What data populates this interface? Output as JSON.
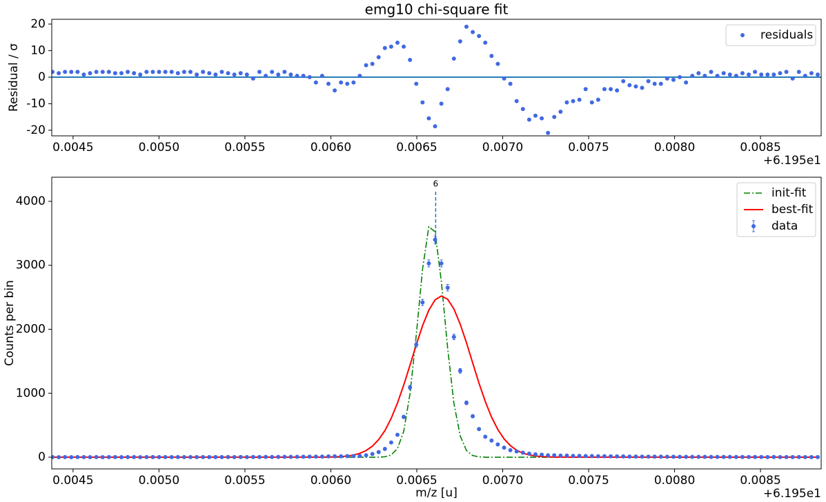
{
  "chart_data": [
    {
      "type": "scatter",
      "title": "emg10 chi-square fit",
      "ylabel": "Residual / σ",
      "x_offset_label": "+6.195e1",
      "xlim": [
        0.004376,
        0.008853
      ],
      "ylim": [
        -22.1,
        21.8
      ],
      "xticks": [
        0.0045,
        {
          "value": 0.005,
          "label": "0.0050"
        },
        0.0055,
        {
          "value": 0.006,
          "label": "0.0060"
        },
        0.0065,
        {
          "value": 0.007,
          "label": "0.0070"
        },
        0.0075,
        {
          "value": 0.008,
          "label": "0.0080"
        },
        0.0085
      ],
      "yticks": [
        -20,
        -10,
        0,
        10,
        20
      ],
      "hline": 0,
      "hline_color": "#1f77b4",
      "legend": "upper right",
      "x": [
        0.00438,
        0.0044165,
        0.004453,
        0.0044895,
        0.004526,
        0.0045625,
        0.004599,
        0.0046355,
        0.004672,
        0.0047085,
        0.004745,
        0.0047815,
        0.004818,
        0.0048545,
        0.004891,
        0.0049275,
        0.004964,
        0.0050005,
        0.005037,
        0.0050735,
        0.00511,
        0.0051465,
        0.005183,
        0.0052195,
        0.005256,
        0.0052925,
        0.005329,
        0.0053655,
        0.005402,
        0.0054385,
        0.005475,
        0.0055115,
        0.005548,
        0.0055845,
        0.005621,
        0.0056575,
        0.005694,
        0.0057305,
        0.005767,
        0.0058035,
        0.00584,
        0.0058765,
        0.005913,
        0.0059495,
        0.005986,
        0.0060225,
        0.006059,
        0.0060955,
        0.006132,
        0.0061685,
        0.006205,
        0.0062415,
        0.006278,
        0.0063145,
        0.006351,
        0.0063875,
        0.006424,
        0.0064605,
        0.006497,
        0.0065335,
        0.00657,
        0.0066065,
        0.006643,
        0.0066795,
        0.006716,
        0.0067525,
        0.006789,
        0.0068255,
        0.006862,
        0.0068985,
        0.006935,
        0.0069715,
        0.007008,
        0.0070445,
        0.007081,
        0.0071175,
        0.007154,
        0.0071905,
        0.007227,
        0.0072635,
        0.0073,
        0.0073365,
        0.007373,
        0.0074095,
        0.007446,
        0.0074825,
        0.007519,
        0.0075555,
        0.007592,
        0.0076285,
        0.007665,
        0.0077015,
        0.007738,
        0.0077745,
        0.007811,
        0.0078475,
        0.007884,
        0.0079205,
        0.007957,
        0.0079935,
        0.00803,
        0.0080665,
        0.008103,
        0.0081395,
        0.008176,
        0.0082125,
        0.008249,
        0.0082855,
        0.008322,
        0.0083585,
        0.008395,
        0.0084315,
        0.008468,
        0.0085045,
        0.008541,
        0.0085775,
        0.008614,
        0.0086505,
        0.008687,
        0.0087235,
        0.00876,
        0.0087965,
        0.008833
      ],
      "series": [
        {
          "name": "residuals",
          "kind": "scatter",
          "color": "#4169e1",
          "values": [
            2,
            1.5,
            2,
            2,
            2,
            1,
            1.5,
            2,
            2,
            2,
            1.5,
            1.5,
            2,
            1.5,
            1,
            2,
            2,
            2,
            2,
            2,
            1.5,
            2,
            2,
            1,
            2,
            1.5,
            1,
            2,
            1.5,
            1,
            1.5,
            1,
            -0.5,
            2,
            0.5,
            2,
            1,
            2,
            1,
            0.5,
            0.5,
            0,
            -2,
            0.5,
            -2.5,
            -5,
            -2,
            -2.5,
            -2,
            0.5,
            4.5,
            5,
            7.5,
            11,
            11.5,
            13,
            11.5,
            6.5,
            -2.5,
            -9.5,
            -15.5,
            -18.5,
            -10,
            -4.5,
            7,
            13.5,
            19,
            17,
            15.5,
            13,
            8,
            5,
            -0.5,
            -2.5,
            -9,
            -12,
            -16,
            -14.5,
            -15.5,
            -21,
            -15,
            -13,
            -9.5,
            -9,
            -8.5,
            -4.5,
            -9.5,
            -8.5,
            -4.5,
            -4.5,
            -5,
            -1.5,
            -3,
            -3.5,
            -4,
            -1.5,
            -2.5,
            -2.5,
            -0.5,
            -1,
            0,
            -2,
            0.5,
            1.5,
            0.5,
            2,
            0.5,
            1.5,
            1,
            0.5,
            1.5,
            1,
            2,
            1,
            1,
            1,
            1.5,
            2,
            -0.5,
            2,
            0.5,
            1.5,
            1
          ]
        }
      ]
    },
    {
      "type": "line",
      "xlabel": "m/z [u]",
      "ylabel": "Counts per bin",
      "x_offset_label": "+6.195e1",
      "xlim": [
        0.004376,
        0.008853
      ],
      "ylim": [
        -183,
        4377
      ],
      "xticks": [
        0.0045,
        {
          "value": 0.005,
          "label": "0.0050"
        },
        0.0055,
        {
          "value": 0.006,
          "label": "0.0060"
        },
        0.0065,
        {
          "value": 0.007,
          "label": "0.0070"
        },
        0.0075,
        {
          "value": 0.008,
          "label": "0.0080"
        },
        0.0085
      ],
      "yticks": [
        0,
        1000,
        2000,
        3000,
        4000
      ],
      "legend": "upper right",
      "annotations": [
        {
          "text": "6",
          "x": 0.00661,
          "y_start": 3320,
          "y_end": 4150,
          "color": "#1f77b4"
        }
      ],
      "x": [
        0.00438,
        0.0044165,
        0.004453,
        0.0044895,
        0.004526,
        0.0045625,
        0.004599,
        0.0046355,
        0.004672,
        0.0047085,
        0.004745,
        0.0047815,
        0.004818,
        0.0048545,
        0.004891,
        0.0049275,
        0.004964,
        0.0050005,
        0.005037,
        0.0050735,
        0.00511,
        0.0051465,
        0.005183,
        0.0052195,
        0.005256,
        0.0052925,
        0.005329,
        0.0053655,
        0.005402,
        0.0054385,
        0.005475,
        0.0055115,
        0.005548,
        0.0055845,
        0.005621,
        0.0056575,
        0.005694,
        0.0057305,
        0.005767,
        0.0058035,
        0.00584,
        0.0058765,
        0.005913,
        0.0059495,
        0.005986,
        0.0060225,
        0.006059,
        0.0060955,
        0.006132,
        0.0061685,
        0.006205,
        0.0062415,
        0.006278,
        0.0063145,
        0.006351,
        0.0063875,
        0.006424,
        0.0064605,
        0.006497,
        0.0065335,
        0.00657,
        0.0066065,
        0.006643,
        0.0066795,
        0.006716,
        0.0067525,
        0.006789,
        0.0068255,
        0.006862,
        0.0068985,
        0.006935,
        0.0069715,
        0.007008,
        0.0070445,
        0.007081,
        0.0071175,
        0.007154,
        0.0071905,
        0.007227,
        0.0072635,
        0.0073,
        0.0073365,
        0.007373,
        0.0074095,
        0.007446,
        0.0074825,
        0.007519,
        0.0075555,
        0.007592,
        0.0076285,
        0.007665,
        0.0077015,
        0.007738,
        0.0077745,
        0.007811,
        0.0078475,
        0.007884,
        0.0079205,
        0.007957,
        0.0079935,
        0.00803,
        0.0080665,
        0.008103,
        0.0081395,
        0.008176,
        0.0082125,
        0.008249,
        0.0082855,
        0.008322,
        0.0083585,
        0.008395,
        0.0084315,
        0.008468,
        0.0085045,
        0.008541,
        0.0085775,
        0.008614,
        0.0086505,
        0.008687,
        0.0087235,
        0.00876,
        0.0087965,
        0.008833
      ],
      "series": [
        {
          "name": "init-fit",
          "kind": "line",
          "linestyle": "dashdot",
          "color": "#008000",
          "values": [
            0,
            0,
            0,
            0,
            0,
            0,
            0,
            0,
            0,
            0,
            0,
            0,
            0,
            0,
            0,
            0,
            0,
            0,
            0,
            0,
            0,
            0,
            0,
            0,
            0,
            0,
            0,
            0,
            0,
            0,
            0,
            0,
            0,
            0,
            0,
            0,
            0,
            0,
            0,
            0,
            0,
            0,
            0,
            0,
            0,
            0,
            0,
            0,
            0,
            0,
            0,
            0,
            0,
            7,
            35,
            134,
            406,
            990,
            1910,
            2939,
            3604,
            3524,
            2745,
            1706,
            844,
            333,
            105,
            26,
            5,
            0,
            0,
            0,
            0,
            0,
            0,
            0,
            0,
            0,
            0,
            0,
            0,
            0,
            0,
            0,
            0,
            0,
            0,
            0,
            0,
            0,
            0,
            0,
            0,
            0,
            0,
            0,
            0,
            0,
            0,
            0,
            0,
            0,
            0,
            0,
            0,
            0,
            0,
            0,
            0,
            0,
            0,
            0,
            0,
            0,
            0,
            0,
            0,
            0,
            0,
            0,
            0,
            0,
            0
          ]
        },
        {
          "name": "best-fit",
          "kind": "line",
          "linestyle": "solid",
          "color": "#ff0000",
          "values": [
            0,
            0,
            0,
            0,
            0,
            0,
            0,
            0,
            0,
            0,
            0,
            0,
            0,
            0,
            0,
            0,
            0,
            0,
            0,
            0,
            0,
            0,
            0,
            0,
            0,
            0,
            0,
            0,
            0,
            0,
            0,
            0,
            0,
            0,
            0,
            0,
            0,
            0,
            0,
            0,
            0,
            0,
            0,
            0,
            2,
            4,
            9,
            18,
            33,
            60,
            104,
            172,
            274,
            416,
            607,
            846,
            1128,
            1439,
            1757,
            2055,
            2298,
            2460,
            2520,
            2470,
            2318,
            2081,
            1790,
            1472,
            1157,
            871,
            627,
            433,
            286,
            181,
            109,
            63,
            35,
            19,
            10,
            5,
            2,
            1,
            0,
            0,
            0,
            0,
            0,
            0,
            0,
            0,
            0,
            0,
            0,
            0,
            0,
            0,
            0,
            0,
            0,
            0,
            0,
            0,
            0,
            0,
            0,
            0,
            0,
            0,
            0,
            0,
            0,
            0,
            0,
            0,
            0,
            0,
            0,
            0,
            0,
            0,
            0,
            0,
            0
          ]
        },
        {
          "name": "data",
          "kind": "errorbar",
          "color": "#4169e1",
          "values": [
            1,
            0,
            1,
            0,
            1,
            1,
            0,
            1,
            0,
            1,
            1,
            0,
            1,
            1,
            0,
            1,
            1,
            2,
            1,
            1,
            1,
            2,
            1,
            1,
            2,
            1,
            2,
            2,
            3,
            2,
            3,
            2,
            3,
            3,
            4,
            3,
            4,
            5,
            5,
            6,
            7,
            8,
            9,
            10,
            12,
            14,
            14,
            16,
            18,
            20,
            30,
            50,
            80,
            130,
            230,
            350,
            630,
            1090,
            1760,
            2420,
            3030,
            3400,
            3030,
            2650,
            1880,
            1350,
            850,
            640,
            440,
            320,
            260,
            200,
            150,
            110,
            90,
            70,
            55,
            45,
            40,
            30,
            30,
            25,
            25,
            20,
            20,
            18,
            18,
            15,
            15,
            14,
            12,
            12,
            10,
            10,
            9,
            9,
            8,
            8,
            7,
            7,
            6,
            6,
            5,
            5,
            5,
            4,
            4,
            4,
            4,
            3,
            3,
            3,
            3,
            3,
            2,
            3,
            2,
            2,
            2,
            3,
            2,
            2,
            2
          ],
          "errors": [
            1,
            1,
            1,
            1,
            1,
            1,
            1,
            1,
            1,
            1,
            1,
            1,
            1,
            1,
            1,
            1,
            1,
            1,
            1,
            1,
            1,
            1,
            1,
            1,
            1,
            1,
            1,
            1,
            2,
            1,
            2,
            1,
            2,
            2,
            2,
            2,
            2,
            2,
            2,
            2,
            3,
            3,
            3,
            3,
            3,
            4,
            4,
            4,
            4,
            4,
            5,
            7,
            9,
            11,
            15,
            19,
            25,
            33,
            42,
            49,
            55,
            58,
            55,
            51,
            43,
            37,
            29,
            25,
            21,
            18,
            16,
            14,
            12,
            10,
            9,
            8,
            7,
            7,
            6,
            5,
            5,
            5,
            5,
            4,
            4,
            4,
            4,
            4,
            4,
            4,
            3,
            3,
            3,
            3,
            3,
            3,
            3,
            3,
            3,
            3,
            2,
            2,
            2,
            2,
            2,
            2,
            2,
            2,
            2,
            2,
            2,
            2,
            2,
            2,
            1,
            2,
            1,
            1,
            1,
            2,
            1,
            1,
            1
          ]
        }
      ]
    }
  ]
}
